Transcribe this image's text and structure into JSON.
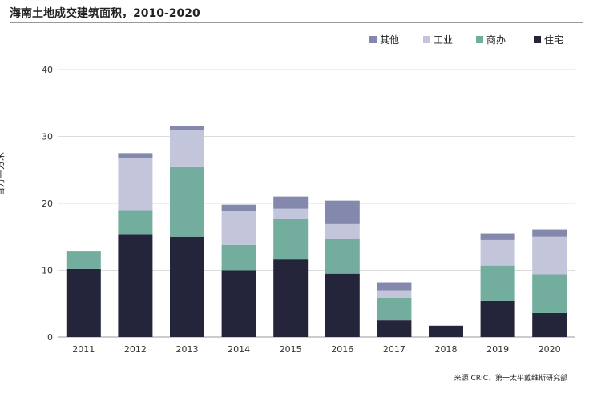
{
  "chart_data": {
    "type": "bar",
    "stacked": true,
    "title": "海南土地成交建筑面积，2010-2020",
    "ylabel": "百万平方米",
    "xlabel": "",
    "ylim": [
      0,
      40
    ],
    "yticks": [
      "0",
      "10",
      "20",
      "30",
      "40"
    ],
    "grid": true,
    "legend_position": "top-right",
    "categories": [
      "2011",
      "2012",
      "2013",
      "2014",
      "2015",
      "2016",
      "2017",
      "2018",
      "2019",
      "2020"
    ],
    "series": [
      {
        "name": "住宅",
        "color": "#24253a",
        "values": [
          10.2,
          15.4,
          15.0,
          10.0,
          11.6,
          9.5,
          2.5,
          1.7,
          5.4,
          3.6
        ]
      },
      {
        "name": "商办",
        "color": "#72ad9e",
        "values": [
          2.6,
          3.6,
          10.4,
          3.8,
          6.1,
          5.2,
          3.4,
          0.0,
          5.3,
          5.8
        ]
      },
      {
        "name": "工业",
        "color": "#c3c6db",
        "values": [
          0.0,
          7.7,
          5.5,
          5.0,
          1.5,
          2.2,
          1.1,
          0.0,
          3.8,
          5.6
        ]
      },
      {
        "name": "其他",
        "color": "#8488ad",
        "values": [
          0.0,
          0.8,
          0.6,
          1.0,
          1.8,
          3.5,
          1.2,
          0.0,
          1.0,
          1.1
        ]
      }
    ],
    "legend_order": [
      "其他",
      "工业",
      "商办",
      "住宅"
    ]
  },
  "source": "来源  CRIC、第一太平戴维斯研究部"
}
